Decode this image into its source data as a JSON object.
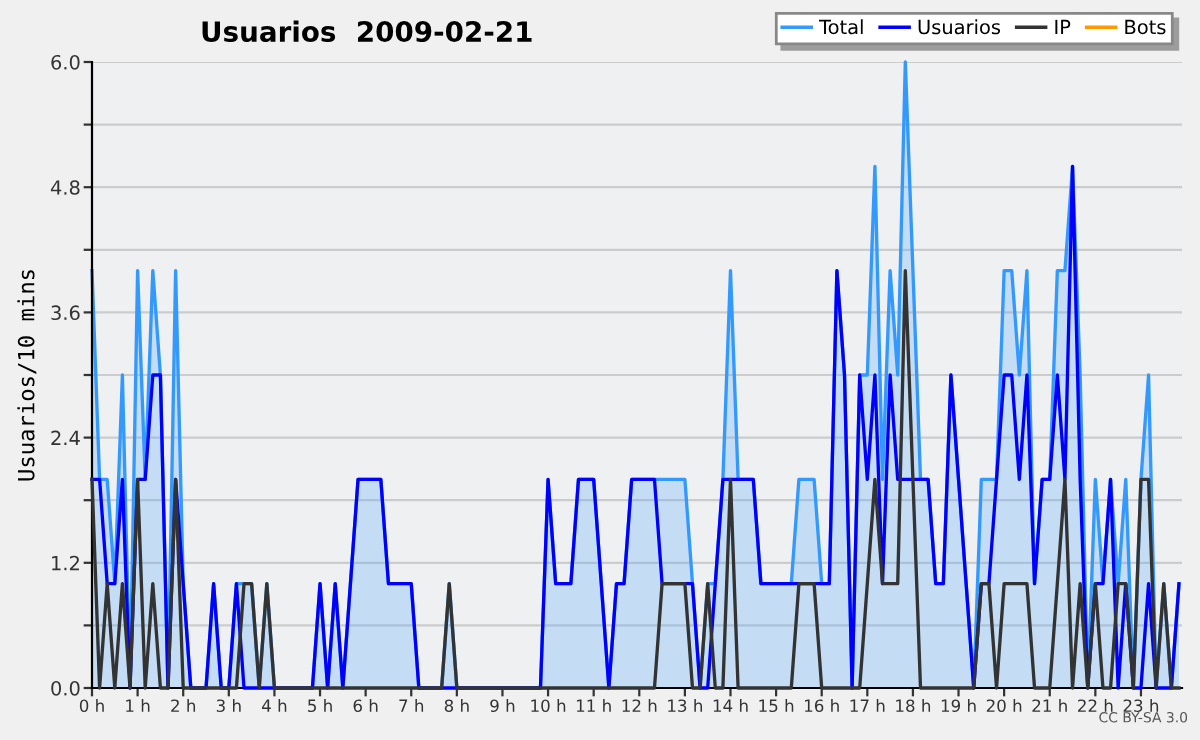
{
  "chart_data": {
    "type": "line",
    "title": "Usuarios  2009-02-21",
    "ylabel": "Usuarios/10 mins",
    "annotations": [
      "CC BY-SA 3.0"
    ],
    "x": [
      0,
      0.1667,
      0.3333,
      0.5,
      0.6667,
      0.8333,
      1,
      1.1667,
      1.3333,
      1.5,
      1.6667,
      1.8333,
      2,
      2.1667,
      2.3333,
      2.5,
      2.6667,
      2.8333,
      3,
      3.1667,
      3.3333,
      3.5,
      3.6667,
      3.8333,
      4,
      4.1667,
      4.3333,
      4.5,
      4.6667,
      4.8333,
      5,
      5.1667,
      5.3333,
      5.5,
      5.6667,
      5.8333,
      6,
      6.1667,
      6.3333,
      6.5,
      6.6667,
      6.8333,
      7,
      7.1667,
      7.3333,
      7.5,
      7.6667,
      7.8333,
      8,
      8.1667,
      8.3333,
      8.5,
      8.6667,
      8.8333,
      9,
      9.1667,
      9.3333,
      9.5,
      9.6667,
      9.8333,
      10,
      10.1667,
      10.3333,
      10.5,
      10.6667,
      10.8333,
      11,
      11.1667,
      11.3333,
      11.5,
      11.6667,
      11.8333,
      12,
      12.1667,
      12.3333,
      12.5,
      12.6667,
      12.8333,
      13,
      13.1667,
      13.3333,
      13.5,
      13.6667,
      13.8333,
      14,
      14.1667,
      14.3333,
      14.5,
      14.6667,
      14.8333,
      15,
      15.1667,
      15.3333,
      15.5,
      15.6667,
      15.8333,
      16,
      16.1667,
      16.3333,
      16.5,
      16.6667,
      16.8333,
      17,
      17.1667,
      17.3333,
      17.5,
      17.6667,
      17.8333,
      18,
      18.1667,
      18.3333,
      18.5,
      18.6667,
      18.8333,
      19,
      19.1667,
      19.3333,
      19.5,
      19.6667,
      19.8333,
      20,
      20.1667,
      20.3333,
      20.5,
      20.6667,
      20.8333,
      21,
      21.1667,
      21.3333,
      21.5,
      21.6667,
      21.8333,
      22,
      22.1667,
      22.3333,
      22.5,
      22.6667,
      22.8333,
      23,
      23.1667,
      23.3333,
      23.5,
      23.6667,
      23.8333
    ],
    "series": [
      {
        "name": "Bots",
        "color": "#ff9900",
        "values": [
          null,
          null,
          null,
          null,
          null,
          null,
          null,
          null,
          null,
          null,
          null,
          null,
          null,
          null,
          null,
          null,
          null,
          null,
          null,
          null,
          null,
          null,
          null,
          null,
          null,
          null,
          null,
          null,
          null,
          null,
          null,
          null,
          null,
          null,
          null,
          null,
          null,
          null,
          null,
          null,
          null,
          null,
          null,
          null,
          null,
          null,
          null,
          null,
          null,
          null,
          null,
          null,
          null,
          null,
          null,
          null,
          null,
          null,
          null,
          null,
          null,
          null,
          null,
          null,
          null,
          null,
          null,
          null,
          null,
          null,
          null,
          null,
          null,
          null,
          null,
          null,
          null,
          null,
          null,
          null,
          null,
          null,
          null,
          null,
          null,
          null,
          null,
          null,
          null,
          null,
          null,
          null,
          null,
          null,
          null,
          null,
          null,
          null,
          null,
          null,
          null,
          null,
          null,
          null,
          null,
          null,
          null,
          null,
          null,
          null,
          null,
          null,
          null,
          null,
          null,
          null,
          null,
          null,
          null,
          null,
          null,
          null,
          null,
          null,
          null,
          null,
          null,
          null,
          null,
          null,
          null,
          null,
          null,
          null,
          null,
          null,
          null,
          null,
          null,
          null,
          null,
          null,
          null,
          null
        ]
      },
      {
        "name": "Total",
        "type": "area",
        "color": "#3399ff",
        "values": [
          4,
          2,
          2,
          1,
          3,
          0,
          4,
          2,
          4,
          3,
          0,
          4,
          1,
          0,
          0,
          0,
          1,
          0,
          0,
          1,
          1,
          1,
          0,
          1,
          0,
          0,
          0,
          0,
          0,
          0,
          1,
          0,
          1,
          0,
          1,
          2,
          2,
          2,
          2,
          1,
          1,
          1,
          1,
          0,
          0,
          0,
          0,
          1,
          0,
          0,
          0,
          0,
          0,
          0,
          0,
          0,
          0,
          0,
          0,
          0,
          2,
          1,
          1,
          1,
          2,
          2,
          2,
          1,
          0,
          1,
          1,
          2,
          2,
          2,
          2,
          2,
          2,
          2,
          2,
          1,
          0,
          1,
          1,
          2,
          4,
          2,
          2,
          2,
          1,
          1,
          1,
          1,
          1,
          2,
          2,
          2,
          1,
          1,
          4,
          3,
          0,
          3,
          3,
          5,
          2,
          4,
          3,
          6,
          4,
          2,
          2,
          1,
          1,
          3,
          2,
          1,
          0,
          2,
          2,
          2,
          4,
          4,
          3,
          4,
          1,
          2,
          2,
          4,
          4,
          5,
          3,
          0,
          2,
          1,
          2,
          1,
          2,
          0,
          2,
          3,
          0,
          1,
          0,
          1
        ]
      },
      {
        "name": "Usuarios",
        "color": "#0000ff",
        "values": [
          2,
          2,
          1,
          1,
          2,
          0,
          2,
          2,
          3,
          3,
          0,
          2,
          1,
          0,
          0,
          0,
          1,
          0,
          0,
          1,
          0,
          0,
          0,
          0,
          0,
          0,
          0,
          0,
          0,
          0,
          1,
          0,
          1,
          0,
          1,
          2,
          2,
          2,
          2,
          1,
          1,
          1,
          1,
          0,
          0,
          0,
          0,
          0,
          0,
          0,
          0,
          0,
          0,
          0,
          0,
          0,
          0,
          0,
          0,
          0,
          2,
          1,
          1,
          1,
          2,
          2,
          2,
          1,
          0,
          1,
          1,
          2,
          2,
          2,
          2,
          1,
          1,
          1,
          1,
          1,
          0,
          0,
          1,
          2,
          2,
          2,
          2,
          2,
          1,
          1,
          1,
          1,
          1,
          1,
          1,
          1,
          1,
          1,
          4,
          3,
          0,
          3,
          2,
          3,
          1,
          3,
          2,
          2,
          2,
          2,
          2,
          1,
          1,
          3,
          2,
          1,
          0,
          1,
          1,
          2,
          3,
          3,
          2,
          3,
          1,
          2,
          2,
          3,
          2,
          5,
          2,
          0,
          1,
          1,
          2,
          0,
          1,
          0,
          0,
          1,
          0,
          0,
          0,
          1
        ]
      },
      {
        "name": "IP",
        "color": "#333333",
        "values": [
          2,
          0,
          1,
          0,
          1,
          0,
          2,
          0,
          1,
          0,
          0,
          2,
          0,
          0,
          0,
          0,
          0,
          0,
          0,
          0,
          1,
          1,
          0,
          1,
          0,
          0,
          0,
          0,
          0,
          0,
          0,
          0,
          0,
          0,
          0,
          0,
          0,
          0,
          0,
          0,
          0,
          0,
          0,
          0,
          0,
          0,
          0,
          1,
          0,
          0,
          0,
          0,
          0,
          0,
          0,
          0,
          0,
          0,
          0,
          0,
          0,
          0,
          0,
          0,
          0,
          0,
          0,
          0,
          0,
          0,
          0,
          0,
          0,
          0,
          0,
          1,
          1,
          1,
          1,
          0,
          0,
          1,
          0,
          0,
          2,
          0,
          0,
          0,
          0,
          0,
          0,
          0,
          0,
          1,
          1,
          1,
          0,
          0,
          0,
          0,
          0,
          0,
          1,
          2,
          1,
          1,
          1,
          4,
          2,
          0,
          0,
          0,
          0,
          0,
          0,
          0,
          0,
          1,
          1,
          0,
          1,
          1,
          1,
          1,
          0,
          0,
          0,
          1,
          2,
          0,
          1,
          0,
          1,
          0,
          0,
          1,
          1,
          0,
          2,
          2,
          0,
          1,
          0,
          0
        ]
      }
    ],
    "xlim": [
      0,
      23.9
    ],
    "ylim": [
      0,
      6
    ],
    "xticks": [
      {
        "value": 0,
        "label": "0 h"
      },
      {
        "value": 1,
        "label": "1 h"
      },
      {
        "value": 2,
        "label": "2 h"
      },
      {
        "value": 3,
        "label": "3 h"
      },
      {
        "value": 4,
        "label": "4 h"
      },
      {
        "value": 5,
        "label": "5 h"
      },
      {
        "value": 6,
        "label": "6 h"
      },
      {
        "value": 7,
        "label": "7 h"
      },
      {
        "value": 8,
        "label": "8 h"
      },
      {
        "value": 9,
        "label": "9 h"
      },
      {
        "value": 10,
        "label": "10 h"
      },
      {
        "value": 11,
        "label": "11 h"
      },
      {
        "value": 12,
        "label": "12 h"
      },
      {
        "value": 13,
        "label": "13 h"
      },
      {
        "value": 14,
        "label": "14 h"
      },
      {
        "value": 15,
        "label": "15 h"
      },
      {
        "value": 16,
        "label": "16 h"
      },
      {
        "value": 17,
        "label": "17 h"
      },
      {
        "value": 18,
        "label": "18 h"
      },
      {
        "value": 19,
        "label": "19 h"
      },
      {
        "value": 20,
        "label": "20 h"
      },
      {
        "value": 21,
        "label": "21 h"
      },
      {
        "value": 22,
        "label": "22 h"
      },
      {
        "value": 23,
        "label": "23 h"
      }
    ],
    "yticks": [
      {
        "value": 0,
        "label": "0.0"
      },
      {
        "value": 0.6,
        "label": null
      },
      {
        "value": 1.2,
        "label": "1.2"
      },
      {
        "value": 1.8,
        "label": null
      },
      {
        "value": 2.4,
        "label": "2.4"
      },
      {
        "value": 3.0,
        "label": null
      },
      {
        "value": 3.6,
        "label": "3.6"
      },
      {
        "value": 4.2,
        "label": null
      },
      {
        "value": 4.8,
        "label": "4.8"
      },
      {
        "value": 5.4,
        "label": null
      },
      {
        "value": 6,
        "label": "6.0"
      }
    ],
    "grid": "y",
    "legend": "top right"
  }
}
